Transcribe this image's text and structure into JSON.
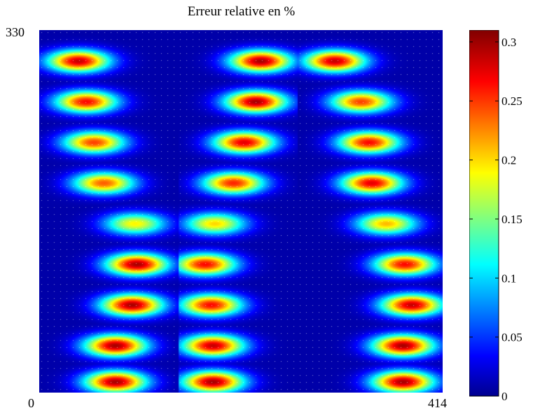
{
  "chart_data": {
    "type": "heatmap",
    "title": "Erreur relative en %",
    "x_range": [
      0,
      414
    ],
    "y_range": [
      0,
      330
    ],
    "x_tick_labels": [
      "0",
      "414"
    ],
    "y_tick_labels": [
      "330"
    ],
    "colorbar": {
      "range": [
        0,
        0.31
      ],
      "ticks": [
        0,
        0.05,
        0.1,
        0.15,
        0.2,
        0.25,
        0.3
      ],
      "tick_labels": [
        "0",
        "0.05",
        "0.1",
        "0.15",
        "0.2",
        "0.25",
        "0.3"
      ],
      "colormap": "jet"
    },
    "column_boundaries": [
      0,
      143,
      265,
      414
    ],
    "row_count": 9,
    "hotspots": [
      {
        "x": 40,
        "y": 302,
        "value": 0.3
      },
      {
        "x": 227,
        "y": 302,
        "value": 0.31
      },
      {
        "x": 303,
        "y": 302,
        "value": 0.3
      },
      {
        "x": 48,
        "y": 265,
        "value": 0.28
      },
      {
        "x": 222,
        "y": 265,
        "value": 0.31
      },
      {
        "x": 330,
        "y": 265,
        "value": 0.26
      },
      {
        "x": 56,
        "y": 228,
        "value": 0.26
      },
      {
        "x": 210,
        "y": 228,
        "value": 0.29
      },
      {
        "x": 338,
        "y": 228,
        "value": 0.28
      },
      {
        "x": 66,
        "y": 191,
        "value": 0.25
      },
      {
        "x": 199,
        "y": 191,
        "value": 0.27
      },
      {
        "x": 341,
        "y": 191,
        "value": 0.29
      },
      {
        "x": 98,
        "y": 154,
        "value": 0.2
      },
      {
        "x": 180,
        "y": 154,
        "value": 0.21
      },
      {
        "x": 356,
        "y": 154,
        "value": 0.22
      },
      {
        "x": 100,
        "y": 117,
        "value": 0.31
      },
      {
        "x": 170,
        "y": 117,
        "value": 0.28
      },
      {
        "x": 375,
        "y": 117,
        "value": 0.28
      },
      {
        "x": 95,
        "y": 80,
        "value": 0.31
      },
      {
        "x": 176,
        "y": 80,
        "value": 0.28
      },
      {
        "x": 382,
        "y": 80,
        "value": 0.3
      },
      {
        "x": 78,
        "y": 43,
        "value": 0.31
      },
      {
        "x": 178,
        "y": 43,
        "value": 0.3
      },
      {
        "x": 373,
        "y": 43,
        "value": 0.31
      },
      {
        "x": 78,
        "y": 10,
        "value": 0.31
      },
      {
        "x": 178,
        "y": 10,
        "value": 0.31
      },
      {
        "x": 373,
        "y": 10,
        "value": 0.31
      }
    ]
  }
}
